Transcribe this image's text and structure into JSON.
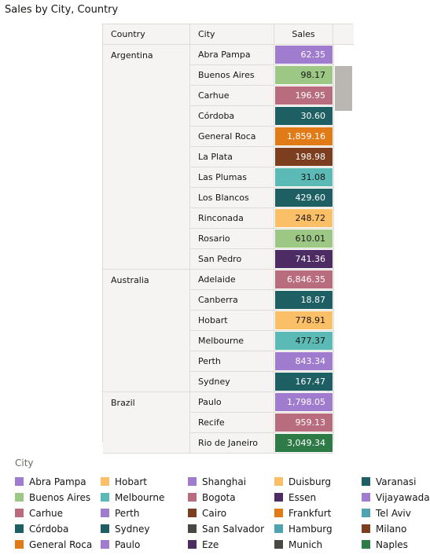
{
  "title": "Sales by City, Country",
  "table": {
    "headers": {
      "country": "Country",
      "city": "City",
      "sales": "Sales"
    }
  },
  "legend_title": "City",
  "chart_data": {
    "type": "table",
    "title": "Sales by City, Country",
    "columns": [
      "Country",
      "City",
      "Sales"
    ],
    "groups": [
      {
        "country": "Argentina",
        "rows": [
          {
            "city": "Abra Pampa",
            "sales": "62.35",
            "value": 62.35
          },
          {
            "city": "Buenos Aires",
            "sales": "98.17",
            "value": 98.17
          },
          {
            "city": "Carhue",
            "sales": "196.95",
            "value": 196.95
          },
          {
            "city": "Córdoba",
            "sales": "30.60",
            "value": 30.6
          },
          {
            "city": "General Roca",
            "sales": "1,859.16",
            "value": 1859.16
          },
          {
            "city": "La Plata",
            "sales": "198.98",
            "value": 198.98
          },
          {
            "city": "Las Plumas",
            "sales": "31.08",
            "value": 31.08
          },
          {
            "city": "Los Blancos",
            "sales": "429.60",
            "value": 429.6
          },
          {
            "city": "Rinconada",
            "sales": "248.72",
            "value": 248.72
          },
          {
            "city": "Rosario",
            "sales": "610.01",
            "value": 610.01
          },
          {
            "city": "San Pedro",
            "sales": "741.36",
            "value": 741.36
          }
        ]
      },
      {
        "country": "Australia",
        "rows": [
          {
            "city": "Adelaide",
            "sales": "6,846.35",
            "value": 6846.35
          },
          {
            "city": "Canberra",
            "sales": "18.87",
            "value": 18.87
          },
          {
            "city": "Hobart",
            "sales": "778.91",
            "value": 778.91
          },
          {
            "city": "Melbourne",
            "sales": "477.37",
            "value": 477.37
          },
          {
            "city": "Perth",
            "sales": "843.34",
            "value": 843.34
          },
          {
            "city": "Sydney",
            "sales": "167.47",
            "value": 167.47
          }
        ]
      },
      {
        "country": "Brazil",
        "rows": [
          {
            "city": "Paulo",
            "sales": "1,798.05",
            "value": 1798.05
          },
          {
            "city": "Recife",
            "sales": "959.13",
            "value": 959.13
          },
          {
            "city": "Rio de Janeiro",
            "sales": "3,049.34",
            "value": 3049.34
          }
        ]
      }
    ],
    "legend": [
      {
        "label": "Abra Pampa",
        "color": "#a07ccf"
      },
      {
        "label": "Buenos Aires",
        "color": "#9dc784"
      },
      {
        "label": "Carhue",
        "color": "#b86c7e"
      },
      {
        "label": "Córdoba",
        "color": "#1e5f64"
      },
      {
        "label": "General Roca",
        "color": "#e07b17"
      },
      {
        "label": "Hobart",
        "color": "#fbbf68"
      },
      {
        "label": "Melbourne",
        "color": "#5bbab5"
      },
      {
        "label": "Perth",
        "color": "#a07ccf"
      },
      {
        "label": "Sydney",
        "color": "#1e5f64"
      },
      {
        "label": "Paulo",
        "color": "#a07ccf"
      },
      {
        "label": "Shanghai",
        "color": "#a07ccf"
      },
      {
        "label": "Bogota",
        "color": "#b86c7e"
      },
      {
        "label": "Cairo",
        "color": "#7d3e1f"
      },
      {
        "label": "San Salvador",
        "color": "#4a4744"
      },
      {
        "label": "Eze",
        "color": "#4d2c64"
      },
      {
        "label": "Duisburg",
        "color": "#fbbf68"
      },
      {
        "label": "Essen",
        "color": "#4d2c64"
      },
      {
        "label": "Frankfurt",
        "color": "#e07b17"
      },
      {
        "label": "Hamburg",
        "color": "#4fa3b0"
      },
      {
        "label": "Munich",
        "color": "#4a4744"
      },
      {
        "label": "Varanasi",
        "color": "#1e5f64"
      },
      {
        "label": "Vijayawada",
        "color": "#a07ccf"
      },
      {
        "label": "Tel Aviv",
        "color": "#4fa3b0"
      },
      {
        "label": "Milano",
        "color": "#7d3e1f"
      },
      {
        "label": "Naples",
        "color": "#2f7b48"
      }
    ]
  },
  "cell_colors": {
    "Abra Pampa": "#a07ccf",
    "Buenos Aires": "#9dc784",
    "Carhue": "#b86c7e",
    "Córdoba": "#1e5f64",
    "General Roca": "#e07b17",
    "La Plata": "#7d3e1f",
    "Las Plumas": "#5bbab5",
    "Los Blancos": "#1e5f64",
    "Rinconada": "#fbbf68",
    "Rosario": "#9dc784",
    "San Pedro": "#4d2c64",
    "Adelaide": "#b86c7e",
    "Canberra": "#1e5f64",
    "Hobart": "#fbbf68",
    "Melbourne": "#5bbab5",
    "Perth": "#a07ccf",
    "Sydney": "#1e5f64",
    "Paulo": "#a07ccf",
    "Recife": "#b86c7e",
    "Rio de Janeiro": "#2f7b48"
  },
  "dark_text_cells": [
    "Buenos Aires",
    "Las Plumas",
    "Rinconada",
    "Rosario",
    "Hobart",
    "Melbourne"
  ]
}
